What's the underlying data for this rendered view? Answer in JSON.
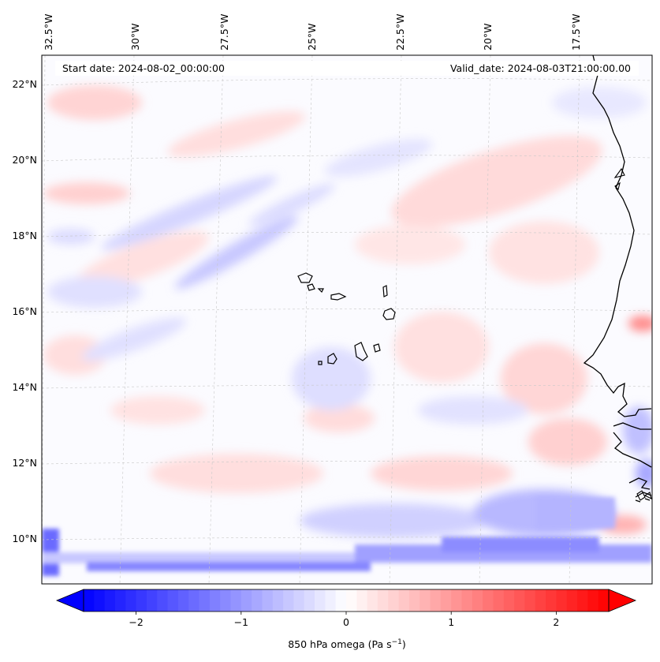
{
  "header": {
    "start_date": "Start date: 2024-08-02_00:00:00",
    "valid_date": "Valid_date: 2024-08-03T21:00:00.00"
  },
  "map": {
    "field": "850 hPa omega",
    "longitude_labels": [
      "32.5°W",
      "30°W",
      "27.5°W",
      "25°W",
      "22.5°W",
      "20°W",
      "17.5°W"
    ],
    "latitude_labels": [
      "22°N",
      "20°N",
      "18°N",
      "16°N",
      "14°N",
      "12°N",
      "10°N"
    ],
    "gridlines": true,
    "features": [
      "African coastline",
      "Cape Verde islands"
    ]
  },
  "colorbar": {
    "label": "850 hPa omega (Pa s",
    "label_sup": "−1",
    "label_end": ")",
    "ticks": [
      "−2",
      "−1",
      "0",
      "1",
      "2"
    ],
    "tick_values": [
      -2,
      -1,
      0,
      1,
      2
    ],
    "range": [
      -2.5,
      2.5
    ],
    "extend": "both",
    "colormap": "bwr",
    "color_min": "#0000ff",
    "color_mid": "#ffffff",
    "color_max": "#ff0000"
  }
}
